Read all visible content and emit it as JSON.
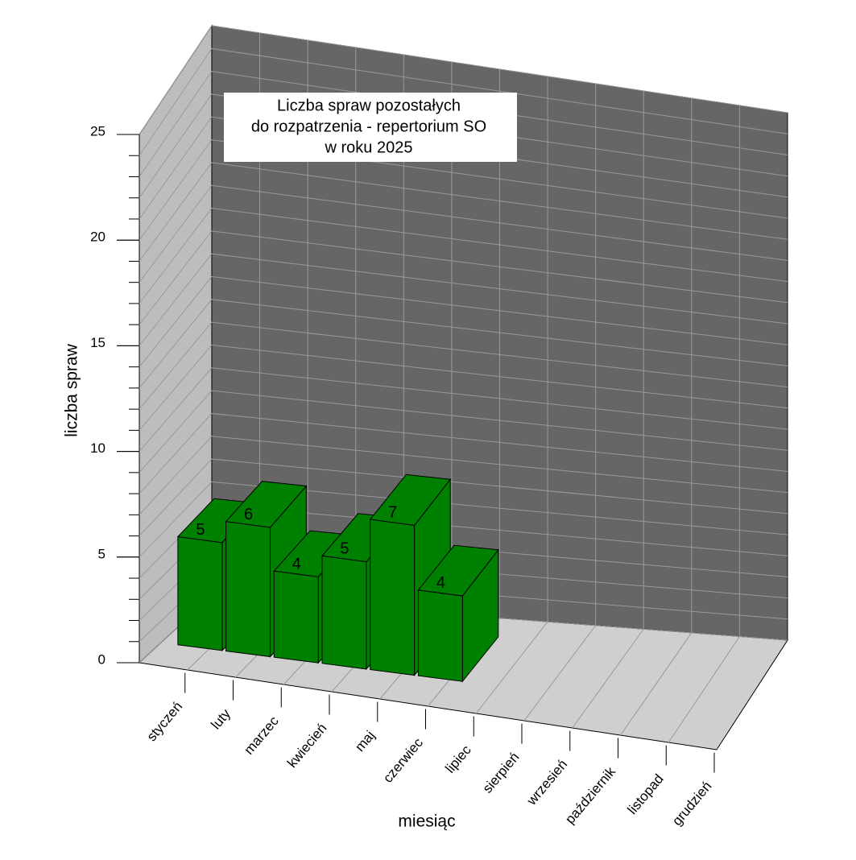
{
  "chart_data": {
    "type": "bar3d",
    "title": [
      "Liczba spraw pozostałych",
      "do rozpatrzenia - repertorium SO",
      "w roku 2025"
    ],
    "x_label": "miesiąc",
    "y_label": "liczba spraw",
    "categories": [
      "styczeń",
      "luty",
      "marzec",
      "kwiecień",
      "maj",
      "czerwiec",
      "lipiec",
      "sierpień",
      "wrzesień",
      "październik",
      "listopad",
      "grudzień"
    ],
    "values": [
      5,
      6,
      4,
      5,
      7,
      4,
      null,
      null,
      null,
      null,
      null,
      null
    ],
    "color": "#008000",
    "ylim": [
      0,
      25
    ],
    "yticks": [
      0,
      5,
      10,
      15,
      20,
      25
    ],
    "minor_yticks": [
      0,
      1,
      2,
      3,
      4,
      5,
      6,
      7,
      8,
      9,
      10,
      11,
      12,
      13,
      14,
      15,
      16,
      17,
      18,
      19,
      20,
      21,
      22,
      23,
      24,
      25
    ],
    "grid": true
  }
}
